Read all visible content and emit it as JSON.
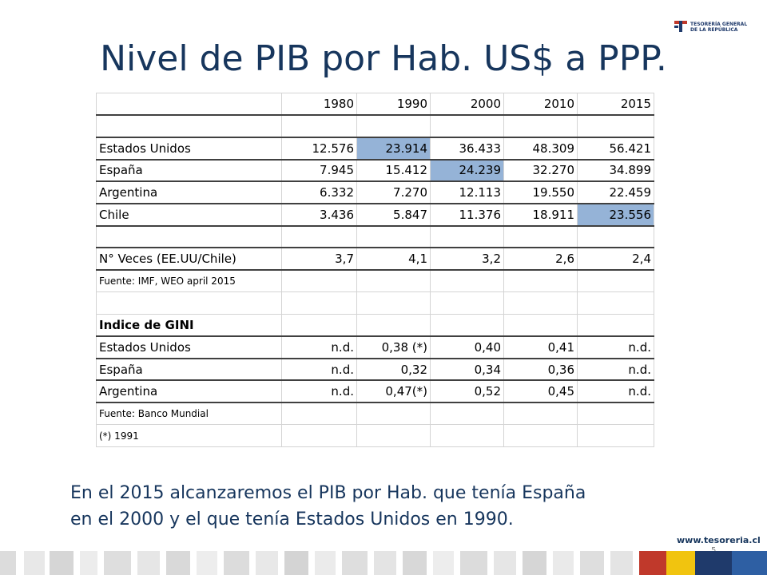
{
  "title": "Nivel de PIB por Hab. US$ a PPP.",
  "logo": {
    "line1": "TESORERÍA GENERAL",
    "line2": "DE LA REPÚBLICA"
  },
  "table": {
    "years": [
      "1980",
      "1990",
      "2000",
      "2010",
      "2015"
    ],
    "gdp_rows": [
      {
        "label": "Estados Unidos",
        "values": [
          "12.576",
          "23.914",
          "36.433",
          "48.309",
          "56.421"
        ]
      },
      {
        "label": "España",
        "values": [
          "7.945",
          "15.412",
          "24.239",
          "32.270",
          "34.899"
        ]
      },
      {
        "label": "Argentina",
        "values": [
          "6.332",
          "7.270",
          "12.113",
          "19.550",
          "22.459"
        ]
      },
      {
        "label": "Chile",
        "values": [
          "3.436",
          "5.847",
          "11.376",
          "18.911",
          "23.556"
        ]
      }
    ],
    "ratio_row": {
      "label": "N° Veces (EE.UU/Chile)",
      "values": [
        "3,7",
        "4,1",
        "3,2",
        "2,6",
        "2,4"
      ]
    },
    "source1": "Fuente: IMF, WEO april 2015",
    "gini_title": "Indice de GINI",
    "gini_rows": [
      {
        "label": "Estados Unidos",
        "values": [
          "n.d.",
          "0,38 (*)",
          "0,40",
          "0,41",
          "n.d."
        ]
      },
      {
        "label": "España",
        "values": [
          "n.d.",
          "0,32",
          "0,34",
          "0,36",
          "n.d."
        ]
      },
      {
        "label": "Argentina",
        "values": [
          "n.d.",
          "0,47(*)",
          "0,52",
          "0,45",
          "n.d."
        ]
      }
    ],
    "source2": "Fuente: Banco Mundial",
    "footnote": "(*) 1991",
    "highlight_color": "#95b3d7"
  },
  "note": {
    "line1": "En el 2015 alcanzaremos el PIB por Hab. que tenía España",
    "line2": "en el 2000 y el que tenía Estados Unidos en 1990."
  },
  "footer": {
    "url": "www.tesoreria.cl",
    "page": "5"
  },
  "colors": {
    "title": "#17365d",
    "brand_red": "#c0392b",
    "brand_blue": "#1f3a6b"
  }
}
